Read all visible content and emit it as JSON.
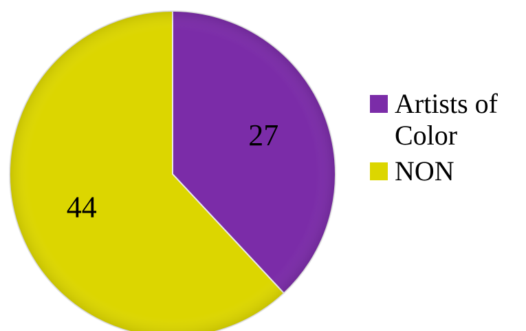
{
  "chart_data": {
    "type": "pie",
    "categories": [
      "Artists of Color",
      "NON"
    ],
    "values": [
      27,
      44
    ],
    "data_labels": [
      "27",
      "44"
    ],
    "colors": [
      "#7b2ca8",
      "#dcd600"
    ],
    "start_angle_deg": 0,
    "direction": "clockwise",
    "legend_position": "right"
  },
  "legend": {
    "items": [
      {
        "label": "Artists of Color",
        "color": "#7b2ca8"
      },
      {
        "label": "NON",
        "color": "#dcd600"
      }
    ]
  }
}
